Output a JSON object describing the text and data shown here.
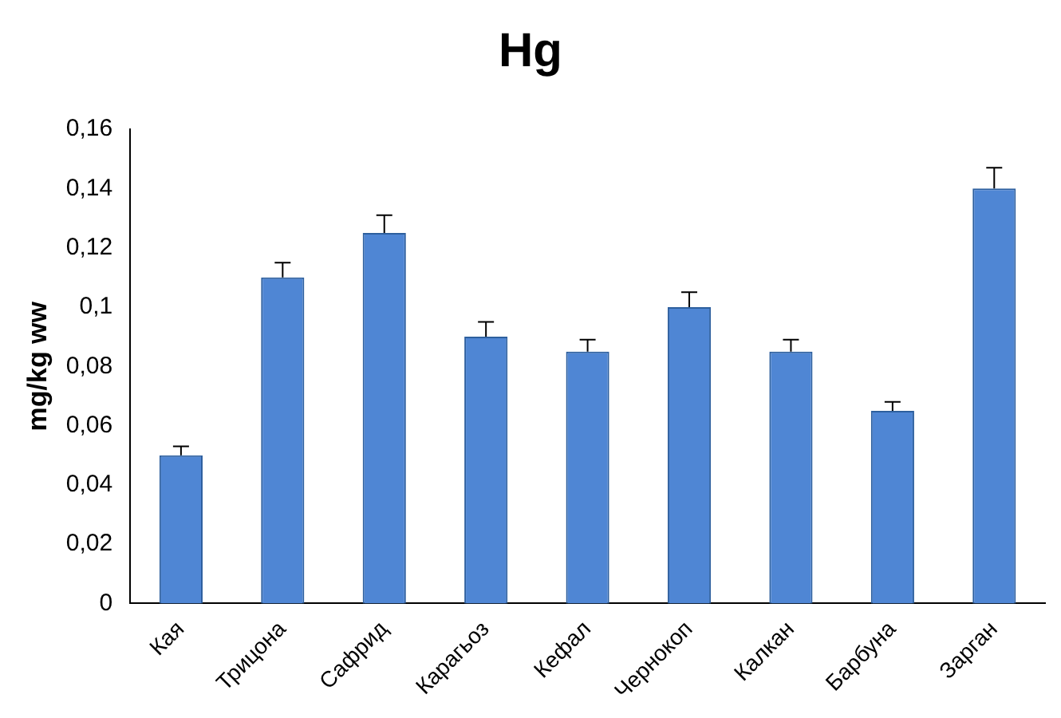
{
  "chart_data": {
    "type": "bar",
    "title": "Hg",
    "ylabel": "mg/kg ww",
    "categories": [
      "Кая",
      "Трицона",
      "Сафрид",
      "Карагьоз",
      "Кефал",
      "Чернокоп",
      "Калкан",
      "Барбуна",
      "Зарган"
    ],
    "values": [
      0.05,
      0.11,
      0.125,
      0.09,
      0.085,
      0.1,
      0.085,
      0.065,
      0.14
    ],
    "errors": [
      [
        0.05,
        0.053
      ],
      [
        0.11,
        0.115
      ],
      [
        0.125,
        0.131
      ],
      [
        0.09,
        0.095
      ],
      [
        0.085,
        0.089
      ],
      [
        0.1,
        0.105
      ],
      [
        0.085,
        0.089
      ],
      [
        0.065,
        0.068
      ],
      [
        0.14,
        0.147
      ]
    ],
    "color": "#4f86d4",
    "ylim": [
      0,
      0.16
    ],
    "yticks": [
      {
        "value": 0,
        "label": "0"
      },
      {
        "value": 0.02,
        "label": "0,02"
      },
      {
        "value": 0.04,
        "label": "0,04"
      },
      {
        "value": 0.06,
        "label": "0,06"
      },
      {
        "value": 0.08,
        "label": "0,08"
      },
      {
        "value": 0.1,
        "label": "0,1"
      },
      {
        "value": 0.12,
        "label": "0,12"
      },
      {
        "value": 0.14,
        "label": "0,14"
      },
      {
        "value": 0.16,
        "label": "0,16"
      }
    ],
    "grid": false,
    "legend": false
  }
}
